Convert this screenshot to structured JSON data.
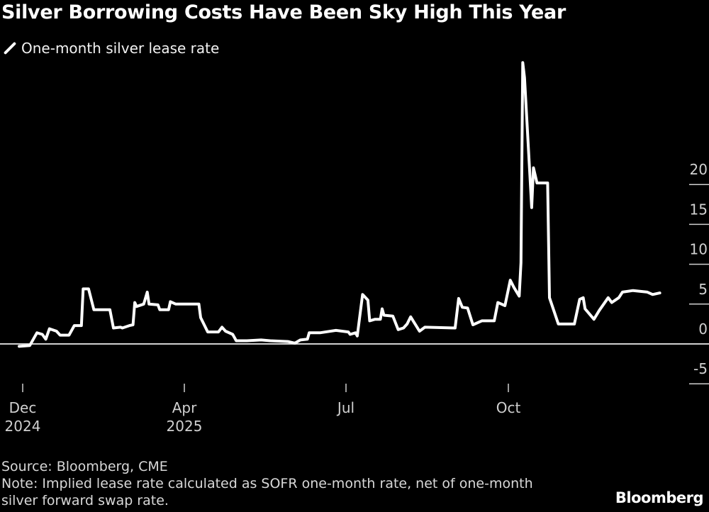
{
  "title": "Silver Borrowing Costs Have Been Sky High This Year",
  "footer": {
    "source": "Source: Bloomberg, CME",
    "note": "Note: Implied lease rate calculated as SOFR one-month rate, net of one-month silver forward swap rate."
  },
  "logo": "Bloomberg",
  "chart_data": {
    "type": "line",
    "title": "Silver Borrowing Costs Have Been Sky High This Year",
    "legend_position": "top-left",
    "y_axis_position": "right",
    "ylim": [
      -5,
      36
    ],
    "yticks": [
      -5,
      0,
      5,
      10,
      15,
      20
    ],
    "xticks": [
      {
        "label": "Dec",
        "sub": "2024"
      },
      {
        "label": "Apr",
        "sub": "2025"
      },
      {
        "label": "Jul",
        "sub": ""
      },
      {
        "label": "Oct",
        "sub": ""
      }
    ],
    "grid": false,
    "zero_line": true,
    "colors": {
      "background": "#000000",
      "line": "#ffffff",
      "text": "#d0d0d0"
    },
    "series": [
      {
        "name": "One-month silver lease rate",
        "points": [
          [
            "2024-12-30",
            -0.3
          ],
          [
            "2025-01-05",
            -0.2
          ],
          [
            "2025-01-09",
            1.4
          ],
          [
            "2025-01-12",
            1.2
          ],
          [
            "2025-01-14",
            0.6
          ],
          [
            "2025-01-16",
            1.9
          ],
          [
            "2025-01-20",
            1.6
          ],
          [
            "2025-01-22",
            1.1
          ],
          [
            "2025-01-27",
            1.1
          ],
          [
            "2025-01-30",
            2.3
          ],
          [
            "2025-02-03",
            2.3
          ],
          [
            "2025-02-04",
            6.9
          ],
          [
            "2025-02-07",
            6.9
          ],
          [
            "2025-02-10",
            4.3
          ],
          [
            "2025-02-19",
            4.3
          ],
          [
            "2025-02-21",
            2.0
          ],
          [
            "2025-02-25",
            2.1
          ],
          [
            "2025-02-26",
            2.0
          ],
          [
            "2025-03-02",
            2.3
          ],
          [
            "2025-03-04",
            2.4
          ],
          [
            "2025-03-05",
            5.2
          ],
          [
            "2025-03-06",
            4.7
          ],
          [
            "2025-03-10",
            5.0
          ],
          [
            "2025-03-12",
            6.5
          ],
          [
            "2025-03-13",
            5.0
          ],
          [
            "2025-03-18",
            4.9
          ],
          [
            "2025-03-19",
            4.3
          ],
          [
            "2025-03-24",
            4.3
          ],
          [
            "2025-03-25",
            5.3
          ],
          [
            "2025-03-28",
            5.0
          ],
          [
            "2025-04-10",
            5.0
          ],
          [
            "2025-04-11",
            3.3
          ],
          [
            "2025-04-15",
            1.5
          ],
          [
            "2025-04-21",
            1.5
          ],
          [
            "2025-04-23",
            2.1
          ],
          [
            "2025-04-25",
            1.6
          ],
          [
            "2025-04-29",
            1.2
          ],
          [
            "2025-05-01",
            0.4
          ],
          [
            "2025-05-07",
            0.4
          ],
          [
            "2025-05-15",
            0.5
          ],
          [
            "2025-05-20",
            0.4
          ],
          [
            "2025-05-30",
            0.3
          ],
          [
            "2025-06-03",
            0.1
          ],
          [
            "2025-06-06",
            0.5
          ],
          [
            "2025-06-10",
            0.6
          ],
          [
            "2025-06-11",
            1.4
          ],
          [
            "2025-06-17",
            1.4
          ],
          [
            "2025-06-26",
            1.7
          ],
          [
            "2025-07-03",
            1.5
          ],
          [
            "2025-07-04",
            1.2
          ],
          [
            "2025-07-07",
            1.4
          ],
          [
            "2025-07-08",
            1.0
          ],
          [
            "2025-07-11",
            6.2
          ],
          [
            "2025-07-14",
            5.5
          ],
          [
            "2025-07-15",
            2.9
          ],
          [
            "2025-07-18",
            3.1
          ],
          [
            "2025-07-21",
            3.1
          ],
          [
            "2025-07-22",
            4.4
          ],
          [
            "2025-07-23",
            3.6
          ],
          [
            "2025-07-28",
            3.5
          ],
          [
            "2025-07-31",
            1.8
          ],
          [
            "2025-08-03",
            2.0
          ],
          [
            "2025-08-05",
            2.5
          ],
          [
            "2025-08-07",
            3.4
          ],
          [
            "2025-08-12",
            1.6
          ],
          [
            "2025-08-15",
            2.1
          ],
          [
            "2025-09-01",
            2.0
          ],
          [
            "2025-09-03",
            5.7
          ],
          [
            "2025-09-05",
            4.6
          ],
          [
            "2025-09-08",
            4.5
          ],
          [
            "2025-09-11",
            2.4
          ],
          [
            "2025-09-16",
            2.9
          ],
          [
            "2025-09-23",
            2.9
          ],
          [
            "2025-09-25",
            5.2
          ],
          [
            "2025-09-29",
            4.8
          ],
          [
            "2025-10-02",
            8.0
          ],
          [
            "2025-10-04",
            7.1
          ],
          [
            "2025-10-07",
            6.0
          ],
          [
            "2025-10-08",
            10.2
          ],
          [
            "2025-10-09",
            35.3
          ],
          [
            "2025-10-10",
            33.4
          ],
          [
            "2025-10-14",
            17.1
          ],
          [
            "2025-10-15",
            22.1
          ],
          [
            "2025-10-17",
            20.2
          ],
          [
            "2025-10-23",
            20.2
          ],
          [
            "2025-10-24",
            5.8
          ],
          [
            "2025-10-29",
            2.5
          ],
          [
            "2025-11-07",
            2.5
          ],
          [
            "2025-11-10",
            5.6
          ],
          [
            "2025-11-12",
            5.8
          ],
          [
            "2025-11-13",
            4.4
          ],
          [
            "2025-11-18",
            3.1
          ],
          [
            "2025-11-21",
            4.2
          ],
          [
            "2025-11-26",
            5.8
          ],
          [
            "2025-11-28",
            5.2
          ],
          [
            "2025-12-02",
            5.8
          ],
          [
            "2025-12-04",
            6.5
          ],
          [
            "2025-12-10",
            6.7
          ],
          [
            "2025-12-18",
            6.5
          ],
          [
            "2025-12-21",
            6.2
          ],
          [
            "2025-12-25",
            6.4
          ]
        ]
      }
    ]
  }
}
